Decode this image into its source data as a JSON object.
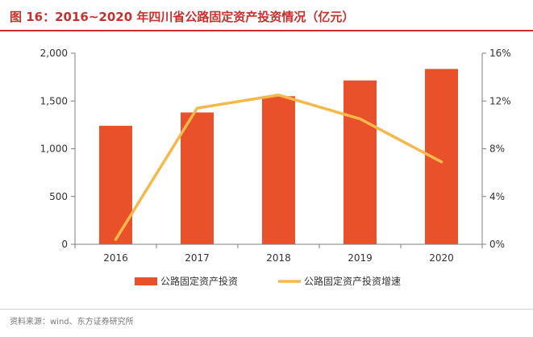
{
  "title": "图 16：2016~2020 年四川省公路固定资产投资情况（亿元）",
  "source": "资料来源：wind、东方证券研究所",
  "colors": {
    "bar": "#e8512a",
    "line": "#f7b84b",
    "title": "#c8302c",
    "axis": "#7f7f7f"
  },
  "chart_data": {
    "type": "bar",
    "categories": [
      "2016",
      "2017",
      "2018",
      "2019",
      "2020"
    ],
    "series": [
      {
        "name": "公路固定资产投资",
        "type": "bar",
        "axis": "left",
        "values": [
          1240,
          1380,
          1550,
          1715,
          1835
        ]
      },
      {
        "name": "公路固定资产投资增速",
        "type": "line",
        "axis": "right",
        "values": [
          0.4,
          11.4,
          12.5,
          10.5,
          6.9
        ]
      }
    ],
    "y_left": {
      "ylim": [
        0,
        2000
      ],
      "ticks": [
        0,
        500,
        1000,
        1500,
        2000
      ],
      "tick_labels": [
        "0",
        "500",
        "1,000",
        "1,500",
        "2,000"
      ]
    },
    "y_right": {
      "ylim": [
        0,
        16
      ],
      "ticks": [
        0,
        4,
        8,
        12,
        16
      ],
      "tick_labels": [
        "0%",
        "4%",
        "8%",
        "12%",
        "16%"
      ]
    },
    "legend": "bottom",
    "grid": false
  }
}
